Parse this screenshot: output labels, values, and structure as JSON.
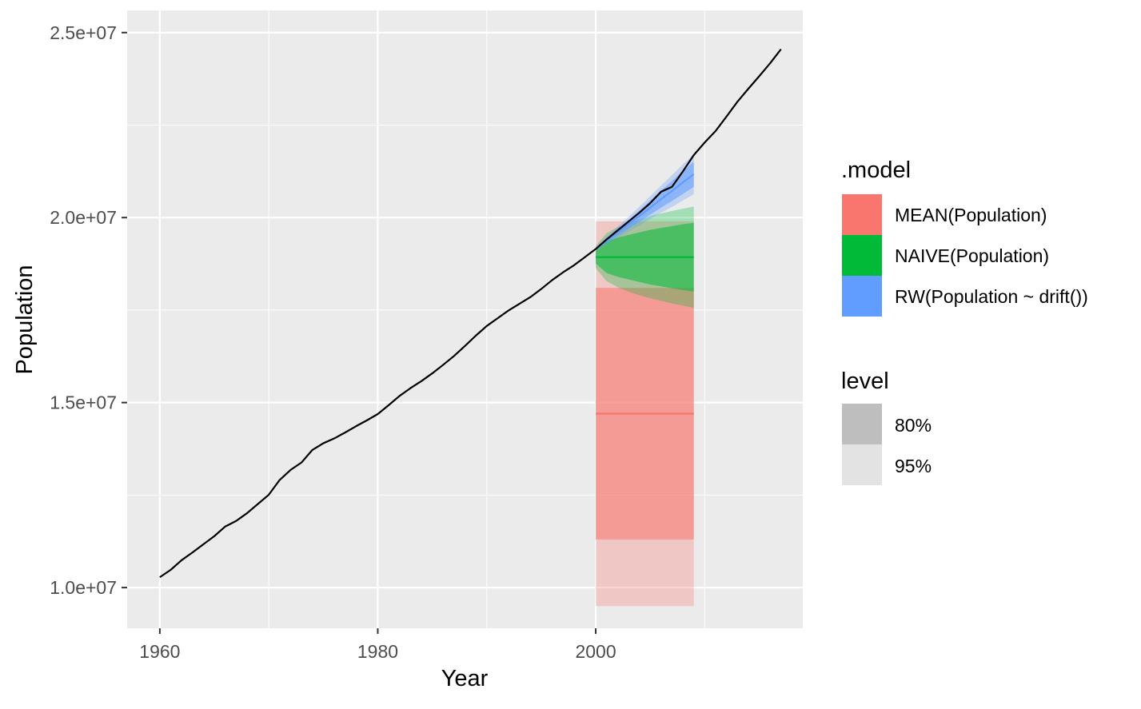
{
  "chart_data": {
    "type": "line",
    "xlabel": "Year",
    "ylabel": "Population",
    "xlim": [
      1957,
      2019
    ],
    "ylim": [
      8900000,
      25600000
    ],
    "x_ticks": [
      1960,
      1980,
      2000
    ],
    "y_ticks": [
      10000000,
      15000000,
      20000000,
      25000000
    ],
    "y_tick_labels": [
      "1.0e+07",
      "1.5e+07",
      "2.0e+07",
      "2.5e+07"
    ],
    "legend_model": {
      "title": ".model",
      "entries": [
        {
          "label": "MEAN(Population)",
          "color": "#F8766D"
        },
        {
          "label": "NAIVE(Population)",
          "color": "#00BA38"
        },
        {
          "label": "RW(Population ~ drift())",
          "color": "#619CFF"
        }
      ]
    },
    "legend_level": {
      "title": "level",
      "entries": [
        {
          "label": "80%",
          "color": "#BEBEBE"
        },
        {
          "label": "95%",
          "color": "#E3E3E3"
        }
      ]
    },
    "history": {
      "x": [
        1960,
        1961,
        1962,
        1963,
        1964,
        1965,
        1966,
        1967,
        1968,
        1969,
        1970,
        1971,
        1972,
        1973,
        1974,
        1975,
        1976,
        1977,
        1978,
        1979,
        1980,
        1981,
        1982,
        1983,
        1984,
        1985,
        1986,
        1987,
        1988,
        1989,
        1990,
        1991,
        1992,
        1993,
        1994,
        1995,
        1996,
        1997,
        1998,
        1999,
        2000,
        2001,
        2002,
        2003,
        2004,
        2005,
        2006,
        2007,
        2008,
        2009,
        2010,
        2011,
        2012,
        2013,
        2014,
        2015,
        2016,
        2017
      ],
      "y": [
        10280000,
        10480000,
        10740000,
        10950000,
        11170000,
        11390000,
        11650000,
        11800000,
        12010000,
        12260000,
        12510000,
        12910000,
        13180000,
        13380000,
        13720000,
        13900000,
        14030000,
        14190000,
        14360000,
        14520000,
        14690000,
        14930000,
        15180000,
        15390000,
        15580000,
        15790000,
        16020000,
        16260000,
        16530000,
        16810000,
        17070000,
        17280000,
        17490000,
        17670000,
        17850000,
        18070000,
        18310000,
        18520000,
        18710000,
        18930000,
        19150000,
        19410000,
        19650000,
        19890000,
        20130000,
        20390000,
        20700000,
        20830000,
        21250000,
        21690000,
        22030000,
        22340000,
        22730000,
        23130000,
        23480000,
        23820000,
        24170000,
        24550000
      ]
    },
    "forecasts": [
      {
        "model": "MEAN(Population)",
        "color": "#F8766D",
        "x": [
          2000,
          2009
        ],
        "point": [
          14700000,
          14700000
        ],
        "lo80": [
          11300000,
          11300000
        ],
        "hi80": [
          18100000,
          18100000
        ],
        "lo95": [
          9500000,
          9500000
        ],
        "hi95": [
          19900000,
          19900000
        ]
      },
      {
        "model": "NAIVE(Population)",
        "color": "#00BA38",
        "x": [
          2000,
          2001,
          2002,
          2003,
          2004,
          2005,
          2006,
          2007,
          2008,
          2009
        ],
        "point": [
          18930000,
          18930000,
          18930000,
          18930000,
          18930000,
          18930000,
          18930000,
          18930000,
          18930000,
          18930000
        ],
        "lo80": [
          18760000,
          18500000,
          18400000,
          18330000,
          18260000,
          18190000,
          18140000,
          18090000,
          18040000,
          18000000
        ],
        "hi80": [
          19100000,
          19360000,
          19460000,
          19530000,
          19600000,
          19670000,
          19720000,
          19770000,
          19820000,
          19860000
        ],
        "lo95": [
          18630000,
          18280000,
          18120000,
          18000000,
          17900000,
          17820000,
          17750000,
          17680000,
          17620000,
          17560000
        ],
        "hi95": [
          19230000,
          19580000,
          19740000,
          19860000,
          19960000,
          20040000,
          20110000,
          20180000,
          20240000,
          20300000
        ]
      },
      {
        "model": "RW(Population ~ drift())",
        "color": "#619CFF",
        "x": [
          2000,
          2001,
          2002,
          2003,
          2004,
          2005,
          2006,
          2007,
          2008,
          2009
        ],
        "point": [
          19150000,
          19380000,
          19600000,
          19820000,
          20040000,
          20270000,
          20500000,
          20720000,
          20950000,
          21170000
        ],
        "lo80": [
          19120000,
          19320000,
          19510000,
          19700000,
          19890000,
          20080000,
          20270000,
          20450000,
          20640000,
          20830000
        ],
        "hi80": [
          19180000,
          19440000,
          19690000,
          19940000,
          20190000,
          20460000,
          20730000,
          20990000,
          21260000,
          21510000
        ],
        "lo95": [
          19100000,
          19280000,
          19450000,
          19620000,
          19790000,
          19960000,
          20130000,
          20290000,
          20460000,
          20630000
        ],
        "hi95": [
          19200000,
          19480000,
          19750000,
          20020000,
          20290000,
          20580000,
          20870000,
          21150000,
          21440000,
          21710000
        ]
      }
    ]
  }
}
